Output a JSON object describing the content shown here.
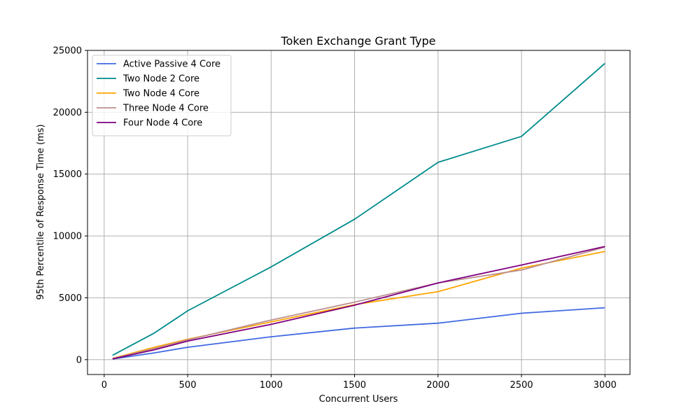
{
  "chart_data": {
    "type": "line",
    "title": "Token Exchange Grant Type",
    "xlabel": "Concurrent Users",
    "ylabel": "95th Percentile of Response Time (ms)",
    "xlim": [
      -100,
      3150
    ],
    "ylim": [
      -1200,
      25000
    ],
    "xticks": [
      0,
      500,
      1000,
      1500,
      2000,
      2500,
      3000
    ],
    "yticks": [
      0,
      5000,
      10000,
      15000,
      20000,
      25000
    ],
    "grid": true,
    "legend_position": "top-left",
    "x": [
      50,
      300,
      500,
      1000,
      1500,
      2000,
      2500,
      3000
    ],
    "series": [
      {
        "name": "Active Passive 4 Core",
        "color": "#4169e1",
        "values": [
          50,
          550,
          1000,
          1850,
          2550,
          2950,
          3750,
          4200
        ]
      },
      {
        "name": "Two Node 2 Core",
        "color": "#008b8b",
        "values": [
          350,
          2150,
          3950,
          7500,
          11350,
          15950,
          18050,
          23950
        ]
      },
      {
        "name": "Two Node 4 Core",
        "color": "#ffa500",
        "values": [
          100,
          1000,
          1650,
          3050,
          4450,
          5500,
          7400,
          8750
        ]
      },
      {
        "name": "Three Node 4 Core",
        "color": "#bc8f8f",
        "values": [
          80,
          900,
          1600,
          3200,
          4650,
          6200,
          7250,
          9100
        ]
      },
      {
        "name": "Four Node 4 Core",
        "color": "#800080",
        "values": [
          60,
          800,
          1500,
          2850,
          4400,
          6200,
          7650,
          9150
        ]
      }
    ]
  }
}
